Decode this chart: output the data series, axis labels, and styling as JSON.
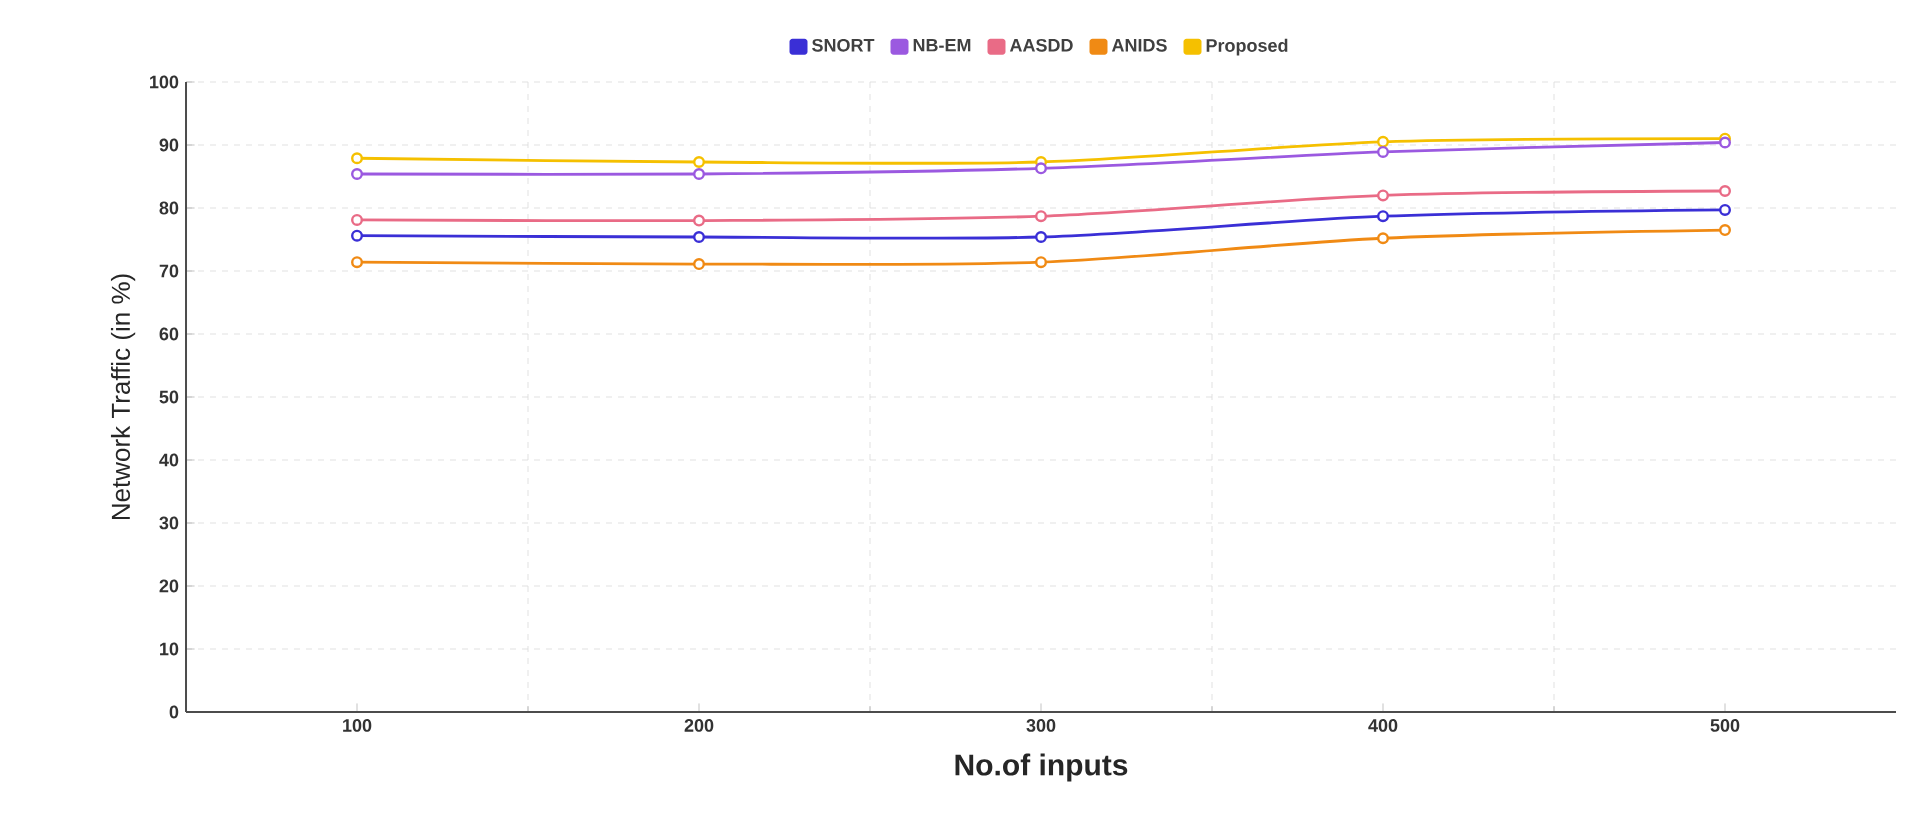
{
  "chart_data": {
    "type": "line",
    "xlabel": "No.of inputs",
    "ylabel": "Network Traffic (in %)",
    "categories": [
      "100",
      "200",
      "300",
      "400",
      "500"
    ],
    "ylim": [
      0,
      100
    ],
    "yticks": [
      0,
      10,
      20,
      30,
      40,
      50,
      60,
      70,
      80,
      90,
      100
    ],
    "grid": true,
    "legend": "top",
    "marker": "circle",
    "line_style": "solid",
    "series": [
      {
        "name": "SNORT",
        "color": "#3a2fd6",
        "values": [
          75.6,
          75.4,
          75.4,
          78.7,
          79.7
        ]
      },
      {
        "name": "NB-EM",
        "color": "#9b59e0",
        "values": [
          85.4,
          85.4,
          86.3,
          88.9,
          90.4
        ]
      },
      {
        "name": "AASDD",
        "color": "#e96b86",
        "values": [
          78.1,
          78.0,
          78.7,
          82.0,
          82.7
        ]
      },
      {
        "name": "ANIDS",
        "color": "#f08a14",
        "values": [
          71.4,
          71.1,
          71.4,
          75.2,
          76.5
        ]
      },
      {
        "name": "Proposed",
        "color": "#f5c000",
        "values": [
          87.9,
          87.3,
          87.3,
          90.5,
          91.0
        ]
      }
    ]
  }
}
